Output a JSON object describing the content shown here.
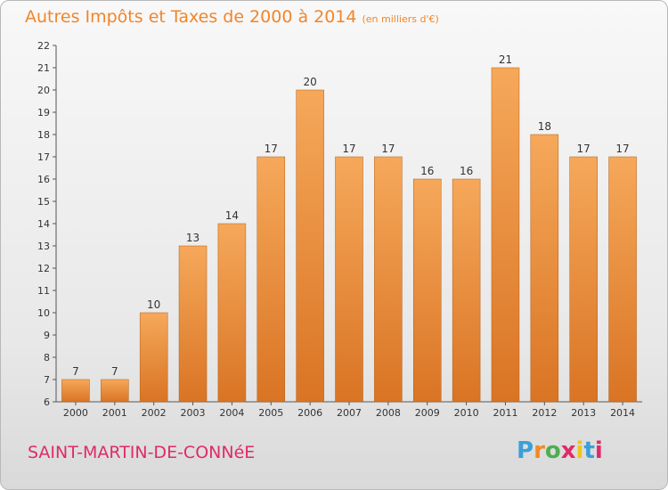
{
  "chart_data": {
    "type": "bar",
    "title": "Autres Impôts et Taxes de 2000 à 2014",
    "subtitle": "(en milliers d'€)",
    "categories": [
      "2000",
      "2001",
      "2002",
      "2003",
      "2004",
      "2005",
      "2006",
      "2007",
      "2008",
      "2009",
      "2010",
      "2011",
      "2012",
      "2013",
      "2014"
    ],
    "values": [
      7,
      7,
      10,
      13,
      14,
      17,
      20,
      17,
      17,
      16,
      16,
      21,
      18,
      17,
      17
    ],
    "ylim": [
      6,
      22
    ],
    "yticks": [
      6,
      7,
      8,
      9,
      10,
      11,
      12,
      13,
      14,
      15,
      16,
      17,
      18,
      19,
      20,
      21,
      22
    ],
    "grid": false,
    "legend": "none",
    "colors": {
      "bar_light": "#f6a85a",
      "bar_dark": "#d97424",
      "bar_stroke": "#b35f15",
      "axis": "#555555",
      "text": "#333333"
    }
  },
  "footer": {
    "commune": "SAINT-MARTIN-DE-CONNéE"
  },
  "logo": {
    "text": "Proxiti",
    "letter_colors": [
      "#3aa0d8",
      "#f08b22",
      "#4caf50",
      "#e02a6a",
      "#f0c419",
      "#3aa0d8",
      "#e02a6a"
    ]
  }
}
